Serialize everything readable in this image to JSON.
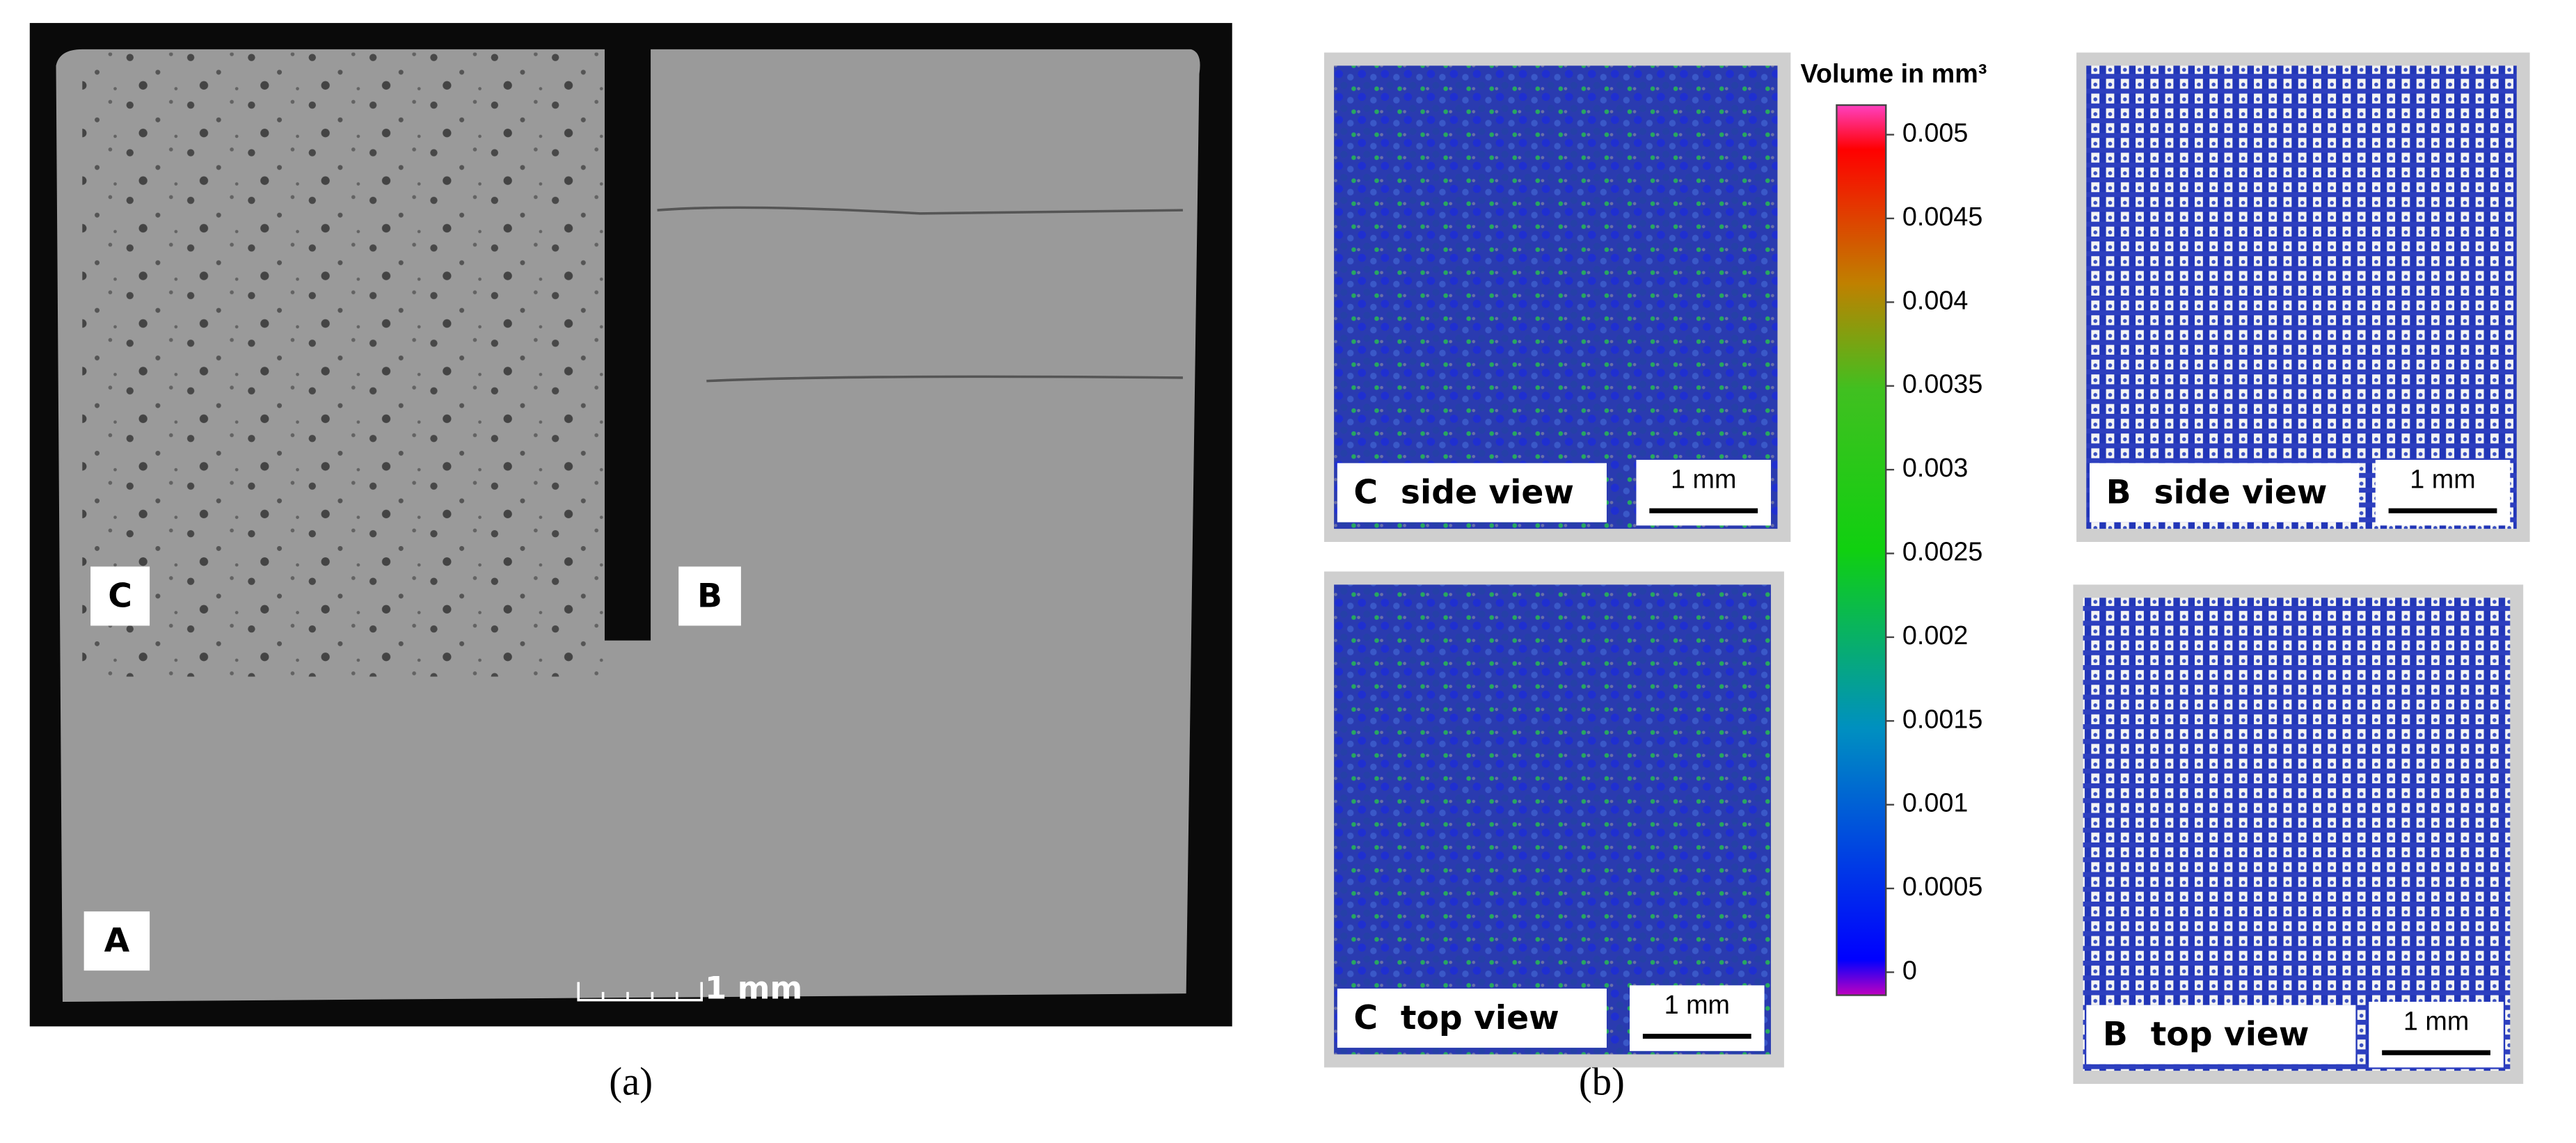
{
  "panel_a": {
    "labels": [
      "C",
      "B",
      "A"
    ],
    "scale_bar": "1 mm",
    "caption": "(a)"
  },
  "panel_b": {
    "images": [
      {
        "label": "C  side view",
        "scale_bar": "1 mm"
      },
      {
        "label": "C  top view",
        "scale_bar": "1 mm"
      },
      {
        "label": "B  side view",
        "scale_bar": "1 mm"
      },
      {
        "label": "B  top view",
        "scale_bar": "1 mm"
      }
    ],
    "colorbar": {
      "title": "Volume in mm³",
      "ticks": [
        0.005,
        0.0045,
        0.004,
        0.0035,
        0.003,
        0.0025,
        0.002,
        0.0015,
        0.001,
        0.0005,
        0
      ],
      "range": [
        0,
        0.005
      ]
    },
    "caption": "(b)"
  }
}
